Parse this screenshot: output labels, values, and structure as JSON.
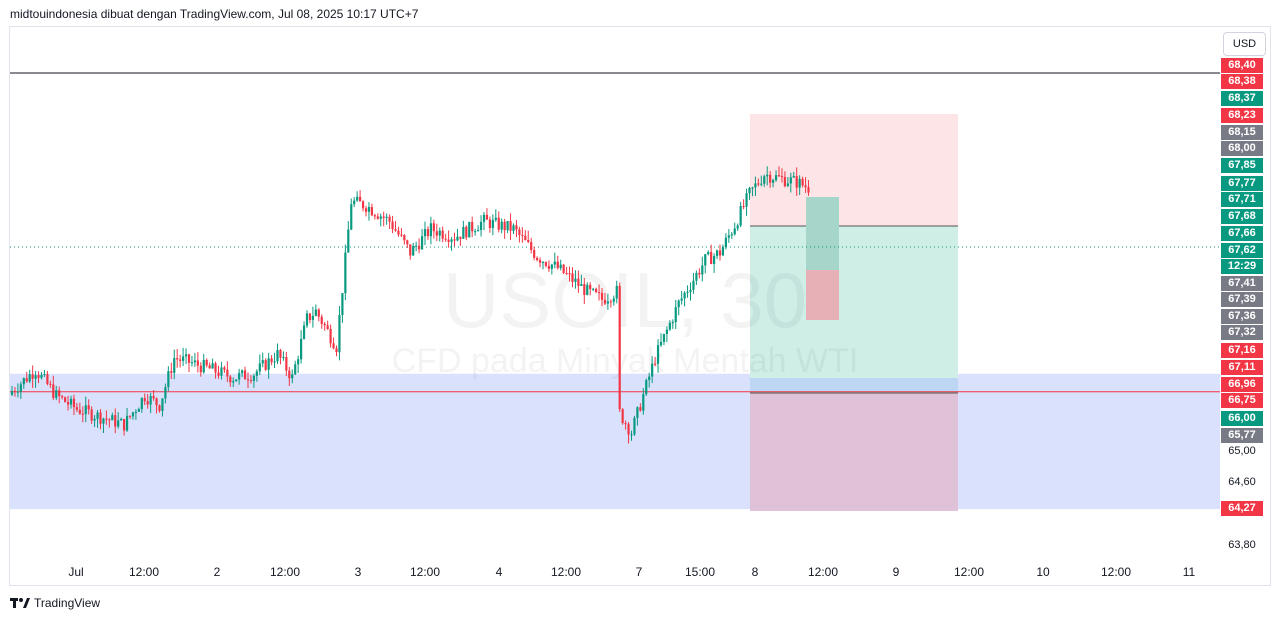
{
  "header": {
    "attribution": "midtouindonesia dibuat dengan TradingView.com, Jul 08, 2025 10:17 UTC+7"
  },
  "watermark": {
    "symbol": "USOIL, 30",
    "description": "CFD pada Minyak Mentah WTI"
  },
  "currency_button": "USD",
  "footer": {
    "brand": "TradingView"
  },
  "colors": {
    "up": "#089981",
    "down": "#f23645",
    "zone": "#d6defc",
    "target": "#cfeee6",
    "stop": "#fde4e6",
    "grey": "#787b86"
  },
  "price_labels": [
    {
      "text": "68,40",
      "color": "#f23645"
    },
    {
      "text": "68,38",
      "color": "#f23645"
    },
    {
      "text": "68,37",
      "color": "#089981"
    },
    {
      "text": "68,23",
      "color": "#f23645"
    },
    {
      "text": "68,15",
      "color": "#787b86"
    },
    {
      "text": "68,00",
      "color": "#787b86"
    },
    {
      "text": "67,85",
      "color": "#089981"
    },
    {
      "text": "67,77",
      "color": "#089981"
    },
    {
      "text": "67,71",
      "color": "#089981"
    },
    {
      "text": "67,68",
      "color": "#089981"
    },
    {
      "text": "67,66",
      "color": "#089981"
    },
    {
      "text": "67,62",
      "color": "#089981"
    },
    {
      "text": "12:29",
      "color": "#089981"
    },
    {
      "text": "67,41",
      "color": "#787b86"
    },
    {
      "text": "67,39",
      "color": "#787b86"
    },
    {
      "text": "67,36",
      "color": "#787b86"
    },
    {
      "text": "67,32",
      "color": "#787b86"
    },
    {
      "text": "67,16",
      "color": "#f23645"
    },
    {
      "text": "67,11",
      "color": "#f23645"
    },
    {
      "text": "66,96",
      "color": "#f23645"
    },
    {
      "text": "66,75",
      "color": "#f23645"
    },
    {
      "text": "66,00",
      "color": "#089981"
    },
    {
      "text": "65,77",
      "color": "#787b86"
    },
    {
      "text": "64,27",
      "color": "#f23645"
    }
  ],
  "price_ticks": [
    "65,00",
    "64,60",
    "63,80"
  ],
  "time_labels": [
    "Jul",
    "12:00",
    "2",
    "12:00",
    "3",
    "12:00",
    "4",
    "12:00",
    "7",
    "15:00",
    "8",
    "12:00",
    "9",
    "12:00",
    "10",
    "12:00",
    "11"
  ],
  "chart_data": {
    "type": "candlestick",
    "symbol": "USOIL",
    "timeframe": "30",
    "currency": "USD",
    "close_anchors": [
      [
        0,
        65.78
      ],
      [
        8,
        66.05
      ],
      [
        15,
        65.72
      ],
      [
        22,
        65.55
      ],
      [
        30,
        65.45
      ],
      [
        38,
        65.35
      ],
      [
        45,
        65.72
      ],
      [
        50,
        65.6
      ],
      [
        55,
        66.2
      ],
      [
        60,
        66.15
      ],
      [
        68,
        66.05
      ],
      [
        75,
        65.95
      ],
      [
        82,
        66.0
      ],
      [
        90,
        66.25
      ],
      [
        95,
        65.95
      ],
      [
        100,
        66.7
      ],
      [
        103,
        66.8
      ],
      [
        110,
        66.35
      ],
      [
        115,
        68.2
      ],
      [
        120,
        68.15
      ],
      [
        128,
        67.95
      ],
      [
        135,
        67.55
      ],
      [
        142,
        67.85
      ],
      [
        150,
        67.75
      ],
      [
        160,
        67.95
      ],
      [
        170,
        67.85
      ],
      [
        178,
        67.5
      ],
      [
        185,
        67.35
      ],
      [
        195,
        67.05
      ],
      [
        200,
        66.95
      ],
      [
        205,
        67.05
      ],
      [
        206,
        65.5
      ],
      [
        210,
        65.25
      ],
      [
        218,
        66.2
      ],
      [
        226,
        66.9
      ],
      [
        235,
        67.45
      ],
      [
        240,
        67.55
      ],
      [
        245,
        67.9
      ],
      [
        250,
        68.3
      ],
      [
        255,
        68.55
      ],
      [
        260,
        68.5
      ],
      [
        266,
        68.45
      ],
      [
        270,
        68.38
      ]
    ],
    "levels": {
      "reference_black": 68.4,
      "current_dotted": 67.62,
      "red_line": 65.77
    },
    "zones": [
      {
        "name": "demand",
        "from": 64.27,
        "to": 66.0
      }
    ],
    "positions": [
      {
        "type": "long",
        "entry": 68.37,
        "target": 67.85,
        "stop": 66.75
      },
      {
        "type": "long",
        "entry": 67.62,
        "target": 68.15,
        "stop": 67.36
      }
    ]
  }
}
